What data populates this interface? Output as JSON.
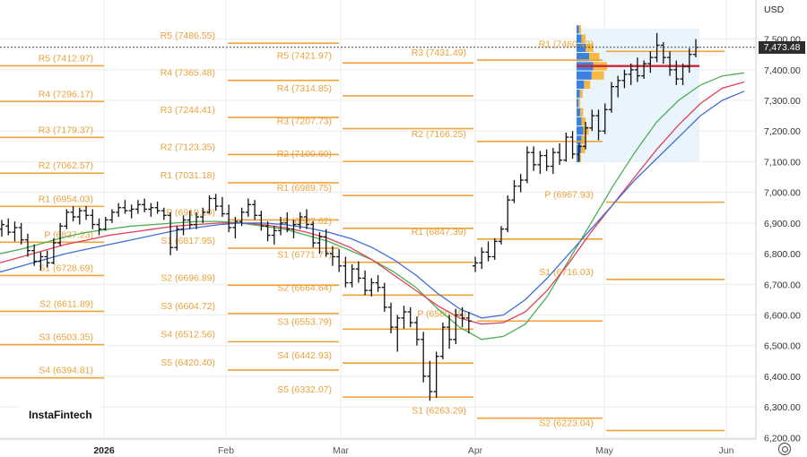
{
  "header": {
    "currency": "USD",
    "last_price": "7,473.48"
  },
  "branding": {
    "logo_text": "InstaFintech"
  },
  "chart_data": {
    "type": "candlestick",
    "instrument_currency": "USD",
    "y_axis": {
      "ticks": [
        "7,500.00",
        "7,400.00",
        "7,300.00",
        "7,200.00",
        "7,100.00",
        "7,000.00",
        "6,900.00",
        "6,800.00",
        "6,700.00",
        "6,600.00",
        "6,500.00",
        "6,400.00",
        "6,300.00",
        "6,200.00"
      ],
      "tick_values": [
        7500,
        7400,
        7300,
        7200,
        7100,
        7000,
        6900,
        6800,
        6700,
        6600,
        6500,
        6400,
        6300,
        6200
      ],
      "ylim": [
        6195,
        7610
      ]
    },
    "x_axis": {
      "ticks": [
        {
          "label": "2026",
          "bold": true
        },
        {
          "label": "Feb",
          "bold": false
        },
        {
          "label": "Mar",
          "bold": false
        },
        {
          "label": "Apr",
          "bold": false
        },
        {
          "label": "May",
          "bold": false
        },
        {
          "label": "Jun",
          "bold": false
        }
      ]
    },
    "last_price": 7473.48,
    "pivot_periods": [
      {
        "levels": [
          {
            "label": "R5 (7412.97)",
            "value": 7412.97
          },
          {
            "label": "R4 (7296.17)",
            "value": 7296.17
          },
          {
            "label": "R3 (7179.37)",
            "value": 7179.37
          },
          {
            "label": "R2 (7062.57)",
            "value": 7062.57
          },
          {
            "label": "R1 (6954.03)",
            "value": 6954.03
          },
          {
            "label": "P (6837.23)",
            "value": 6837.23
          },
          {
            "label": "S1 (6728.69)",
            "value": 6728.69
          },
          {
            "label": "S2 (6611.89)",
            "value": 6611.89
          },
          {
            "label": "S3 (6503.35)",
            "value": 6503.35
          },
          {
            "label": "S4 (6394.81)",
            "value": 6394.81
          }
        ]
      },
      {
        "levels": [
          {
            "label": "R5 (7486.55)",
            "value": 7486.55
          },
          {
            "label": "R4 (7365.48)",
            "value": 7365.48
          },
          {
            "label": "R3 (7244.41)",
            "value": 7244.41
          },
          {
            "label": "R2 (7123.35)",
            "value": 7123.35
          },
          {
            "label": "R1 (7031.18)",
            "value": 7031.18
          },
          {
            "label": "P (6910.10)",
            "value": 6910.1
          },
          {
            "label": "S1 (6817.95)",
            "value": 6817.95
          },
          {
            "label": "S2 (6696.89)",
            "value": 6696.89
          },
          {
            "label": "S3 (6604.72)",
            "value": 6604.72
          },
          {
            "label": "S4 (6512.56)",
            "value": 6512.56
          },
          {
            "label": "S5 (6420.40)",
            "value": 6420.4
          }
        ]
      },
      {
        "levels": [
          {
            "label": "R5 (7421.97)",
            "value": 7421.97
          },
          {
            "label": "R4 (7314.85)",
            "value": 7314.85
          },
          {
            "label": "R3 (7207.73)",
            "value": 7207.73
          },
          {
            "label": "R2 (7100.60)",
            "value": 7100.6
          },
          {
            "label": "R1 (6989.75)",
            "value": 6989.75
          },
          {
            "label": "P (6882.62)",
            "value": 6882.62
          },
          {
            "label": "S1 (6771.77)",
            "value": 6771.77
          },
          {
            "label": "S2 (6664.64)",
            "value": 6664.64
          },
          {
            "label": "S3 (6553.79)",
            "value": 6553.79
          },
          {
            "label": "S4 (6442.93)",
            "value": 6442.93
          },
          {
            "label": "S5 (6332.07)",
            "value": 6332.07
          }
        ]
      },
      {
        "levels": [
          {
            "label": "R3 (7431.49)",
            "value": 7431.49
          },
          {
            "label": "R2 (7166.25)",
            "value": 7166.25
          },
          {
            "label": "R1 (6847.39)",
            "value": 6847.39
          },
          {
            "label": "P (6580.15)",
            "value": 6580.15
          },
          {
            "label": "S1 (6263.29)",
            "value": 6263.29
          }
        ]
      },
      {
        "levels": [
          {
            "label": "R1 (7460.12)",
            "value": 7460.12
          },
          {
            "label": "P (6967.93)",
            "value": 6967.93
          },
          {
            "label": "S1 (6716.03)",
            "value": 6716.03
          },
          {
            "label": "S2 (6223.04)",
            "value": 6223.04
          }
        ]
      }
    ],
    "candles": [
      {
        "o": 6880,
        "h": 6910,
        "l": 6855,
        "c": 6895
      },
      {
        "o": 6890,
        "h": 6915,
        "l": 6860,
        "c": 6870
      },
      {
        "o": 6870,
        "h": 6905,
        "l": 6840,
        "c": 6885
      },
      {
        "o": 6885,
        "h": 6900,
        "l": 6830,
        "c": 6845
      },
      {
        "o": 6845,
        "h": 6865,
        "l": 6790,
        "c": 6810
      },
      {
        "o": 6810,
        "h": 6830,
        "l": 6760,
        "c": 6775
      },
      {
        "o": 6775,
        "h": 6805,
        "l": 6745,
        "c": 6790
      },
      {
        "o": 6790,
        "h": 6810,
        "l": 6755,
        "c": 6770
      },
      {
        "o": 6770,
        "h": 6850,
        "l": 6765,
        "c": 6835
      },
      {
        "o": 6835,
        "h": 6900,
        "l": 6825,
        "c": 6890
      },
      {
        "o": 6890,
        "h": 6945,
        "l": 6880,
        "c": 6935
      },
      {
        "o": 6935,
        "h": 6955,
        "l": 6905,
        "c": 6920
      },
      {
        "o": 6920,
        "h": 6950,
        "l": 6895,
        "c": 6940
      },
      {
        "o": 6940,
        "h": 6955,
        "l": 6910,
        "c": 6925
      },
      {
        "o": 6925,
        "h": 6945,
        "l": 6880,
        "c": 6895
      },
      {
        "o": 6895,
        "h": 6915,
        "l": 6860,
        "c": 6880
      },
      {
        "o": 6880,
        "h": 6920,
        "l": 6875,
        "c": 6910
      },
      {
        "o": 6910,
        "h": 6945,
        "l": 6900,
        "c": 6935
      },
      {
        "o": 6935,
        "h": 6965,
        "l": 6920,
        "c": 6950
      },
      {
        "o": 6950,
        "h": 6975,
        "l": 6930,
        "c": 6940
      },
      {
        "o": 6940,
        "h": 6960,
        "l": 6915,
        "c": 6945
      },
      {
        "o": 6945,
        "h": 6975,
        "l": 6930,
        "c": 6960
      },
      {
        "o": 6960,
        "h": 6980,
        "l": 6935,
        "c": 6945
      },
      {
        "o": 6945,
        "h": 6965,
        "l": 6920,
        "c": 6950
      },
      {
        "o": 6950,
        "h": 6970,
        "l": 6930,
        "c": 6940
      },
      {
        "o": 6940,
        "h": 6950,
        "l": 6910,
        "c": 6925
      },
      {
        "o": 6925,
        "h": 6935,
        "l": 6795,
        "c": 6820
      },
      {
        "o": 6820,
        "h": 6890,
        "l": 6810,
        "c": 6880
      },
      {
        "o": 6880,
        "h": 6925,
        "l": 6860,
        "c": 6910
      },
      {
        "o": 6910,
        "h": 6940,
        "l": 6880,
        "c": 6895
      },
      {
        "o": 6895,
        "h": 6935,
        "l": 6880,
        "c": 6920
      },
      {
        "o": 6920,
        "h": 6950,
        "l": 6900,
        "c": 6935
      },
      {
        "o": 6935,
        "h": 6990,
        "l": 6930,
        "c": 6980
      },
      {
        "o": 6980,
        "h": 6995,
        "l": 6940,
        "c": 6955
      },
      {
        "o": 6955,
        "h": 6985,
        "l": 6920,
        "c": 6930
      },
      {
        "o": 6930,
        "h": 6960,
        "l": 6870,
        "c": 6885
      },
      {
        "o": 6885,
        "h": 6920,
        "l": 6850,
        "c": 6905
      },
      {
        "o": 6905,
        "h": 6950,
        "l": 6890,
        "c": 6935
      },
      {
        "o": 6935,
        "h": 6980,
        "l": 6920,
        "c": 6960
      },
      {
        "o": 6960,
        "h": 6975,
        "l": 6910,
        "c": 6925
      },
      {
        "o": 6925,
        "h": 6940,
        "l": 6875,
        "c": 6890
      },
      {
        "o": 6890,
        "h": 6905,
        "l": 6840,
        "c": 6860
      },
      {
        "o": 6860,
        "h": 6890,
        "l": 6830,
        "c": 6875
      },
      {
        "o": 6875,
        "h": 6920,
        "l": 6860,
        "c": 6900
      },
      {
        "o": 6900,
        "h": 6935,
        "l": 6870,
        "c": 6880
      },
      {
        "o": 6880,
        "h": 6910,
        "l": 6850,
        "c": 6895
      },
      {
        "o": 6895,
        "h": 6935,
        "l": 6880,
        "c": 6920
      },
      {
        "o": 6920,
        "h": 6945,
        "l": 6880,
        "c": 6895
      },
      {
        "o": 6895,
        "h": 6905,
        "l": 6820,
        "c": 6835
      },
      {
        "o": 6835,
        "h": 6870,
        "l": 6800,
        "c": 6855
      },
      {
        "o": 6855,
        "h": 6880,
        "l": 6790,
        "c": 6800
      },
      {
        "o": 6800,
        "h": 6825,
        "l": 6760,
        "c": 6790
      },
      {
        "o": 6790,
        "h": 6815,
        "l": 6740,
        "c": 6760
      },
      {
        "o": 6760,
        "h": 6790,
        "l": 6690,
        "c": 6705
      },
      {
        "o": 6705,
        "h": 6765,
        "l": 6690,
        "c": 6750
      },
      {
        "o": 6750,
        "h": 6775,
        "l": 6705,
        "c": 6720
      },
      {
        "o": 6720,
        "h": 6745,
        "l": 6665,
        "c": 6680
      },
      {
        "o": 6680,
        "h": 6720,
        "l": 6660,
        "c": 6705
      },
      {
        "o": 6705,
        "h": 6730,
        "l": 6675,
        "c": 6690
      },
      {
        "o": 6690,
        "h": 6705,
        "l": 6610,
        "c": 6625
      },
      {
        "o": 6625,
        "h": 6640,
        "l": 6540,
        "c": 6560
      },
      {
        "o": 6560,
        "h": 6600,
        "l": 6480,
        "c": 6590
      },
      {
        "o": 6590,
        "h": 6630,
        "l": 6555,
        "c": 6610
      },
      {
        "o": 6610,
        "h": 6625,
        "l": 6560,
        "c": 6575
      },
      {
        "o": 6575,
        "h": 6595,
        "l": 6500,
        "c": 6520
      },
      {
        "o": 6520,
        "h": 6545,
        "l": 6380,
        "c": 6400
      },
      {
        "o": 6400,
        "h": 6450,
        "l": 6320,
        "c": 6350
      },
      {
        "o": 6350,
        "h": 6480,
        "l": 6330,
        "c": 6465
      },
      {
        "o": 6465,
        "h": 6575,
        "l": 6455,
        "c": 6560
      },
      {
        "o": 6560,
        "h": 6600,
        "l": 6490,
        "c": 6520
      },
      {
        "o": 6520,
        "h": 6620,
        "l": 6505,
        "c": 6600
      },
      {
        "o": 6600,
        "h": 6625,
        "l": 6560,
        "c": 6590
      },
      {
        "o": 6590,
        "h": 6610,
        "l": 6540,
        "c": 6580
      },
      {
        "o": 6760,
        "h": 6790,
        "l": 6740,
        "c": 6770
      },
      {
        "o": 6770,
        "h": 6820,
        "l": 6750,
        "c": 6805
      },
      {
        "o": 6805,
        "h": 6840,
        "l": 6775,
        "c": 6790
      },
      {
        "o": 6790,
        "h": 6850,
        "l": 6780,
        "c": 6840
      },
      {
        "o": 6840,
        "h": 6890,
        "l": 6830,
        "c": 6880
      },
      {
        "o": 6880,
        "h": 6990,
        "l": 6870,
        "c": 6975
      },
      {
        "o": 6975,
        "h": 7040,
        "l": 6965,
        "c": 7020
      },
      {
        "o": 7020,
        "h": 7060,
        "l": 7000,
        "c": 7040
      },
      {
        "o": 7040,
        "h": 7150,
        "l": 7030,
        "c": 7130
      },
      {
        "o": 7130,
        "h": 7150,
        "l": 7070,
        "c": 7090
      },
      {
        "o": 7090,
        "h": 7135,
        "l": 7060,
        "c": 7120
      },
      {
        "o": 7120,
        "h": 7140,
        "l": 7070,
        "c": 7085
      },
      {
        "o": 7085,
        "h": 7145,
        "l": 7060,
        "c": 7130
      },
      {
        "o": 7130,
        "h": 7160,
        "l": 7090,
        "c": 7105
      },
      {
        "o": 7105,
        "h": 7195,
        "l": 7100,
        "c": 7180
      },
      {
        "o": 7180,
        "h": 7200,
        "l": 7110,
        "c": 7125
      },
      {
        "o": 7125,
        "h": 7160,
        "l": 7100,
        "c": 7150
      },
      {
        "o": 7150,
        "h": 7230,
        "l": 7140,
        "c": 7210
      },
      {
        "o": 7210,
        "h": 7270,
        "l": 7200,
        "c": 7250
      },
      {
        "o": 7250,
        "h": 7270,
        "l": 7170,
        "c": 7200
      },
      {
        "o": 7200,
        "h": 7290,
        "l": 7190,
        "c": 7270
      },
      {
        "o": 7270,
        "h": 7360,
        "l": 7260,
        "c": 7345
      },
      {
        "o": 7345,
        "h": 7380,
        "l": 7310,
        "c": 7365
      },
      {
        "o": 7365,
        "h": 7400,
        "l": 7340,
        "c": 7385
      },
      {
        "o": 7385,
        "h": 7420,
        "l": 7350,
        "c": 7400
      },
      {
        "o": 7400,
        "h": 7440,
        "l": 7360,
        "c": 7380
      },
      {
        "o": 7380,
        "h": 7430,
        "l": 7370,
        "c": 7420
      },
      {
        "o": 7420,
        "h": 7460,
        "l": 7390,
        "c": 7440
      },
      {
        "o": 7440,
        "h": 7520,
        "l": 7425,
        "c": 7480
      },
      {
        "o": 7480,
        "h": 7490,
        "l": 7420,
        "c": 7440
      },
      {
        "o": 7440,
        "h": 7460,
        "l": 7380,
        "c": 7400
      },
      {
        "o": 7400,
        "h": 7430,
        "l": 7350,
        "c": 7370
      },
      {
        "o": 7370,
        "h": 7420,
        "l": 7350,
        "c": 7410
      },
      {
        "o": 7410,
        "h": 7470,
        "l": 7390,
        "c": 7450
      },
      {
        "o": 7450,
        "h": 7500,
        "l": 7440,
        "c": 7473
      }
    ],
    "moving_averages": [
      {
        "color": "#4caf50",
        "points": [
          6800,
          6815,
          6835,
          6855,
          6870,
          6880,
          6890,
          6895,
          6900,
          6905,
          6905,
          6900,
          6890,
          6880,
          6860,
          6840,
          6810,
          6780,
          6740,
          6690,
          6620,
          6560,
          6520,
          6530,
          6570,
          6660,
          6780,
          6900,
          7020,
          7130,
          7230,
          7300,
          7350,
          7380,
          7390
        ]
      },
      {
        "color": "#e0405a",
        "points": [
          6770,
          6790,
          6810,
          6830,
          6845,
          6860,
          6870,
          6880,
          6890,
          6895,
          6900,
          6900,
          6895,
          6885,
          6870,
          6850,
          6820,
          6780,
          6730,
          6680,
          6630,
          6590,
          6570,
          6575,
          6610,
          6680,
          6770,
          6870,
          6960,
          7050,
          7140,
          7220,
          7290,
          7340,
          7360
        ]
      },
      {
        "color": "#3f6fd8",
        "points": [
          6740,
          6760,
          6780,
          6800,
          6815,
          6830,
          6845,
          6860,
          6875,
          6885,
          6895,
          6900,
          6900,
          6895,
          6885,
          6870,
          6850,
          6820,
          6780,
          6730,
          6670,
          6620,
          6590,
          6600,
          6650,
          6720,
          6800,
          6880,
          6960,
          7040,
          7110,
          7180,
          7250,
          7300,
          7330
        ]
      }
    ],
    "volume_profile": {
      "rows": [
        7530,
        7500,
        7470,
        7440,
        7410,
        7380,
        7350,
        7320,
        7290,
        7260,
        7230,
        7200,
        7170,
        7140,
        7110
      ],
      "volumes": [
        0.15,
        0.3,
        0.55,
        0.75,
        1.0,
        0.9,
        0.45,
        0.2,
        0.12,
        0.22,
        0.3,
        0.4,
        0.3,
        0.28,
        0.15
      ],
      "poc": 7412
    },
    "grid": true,
    "legend": "none"
  }
}
